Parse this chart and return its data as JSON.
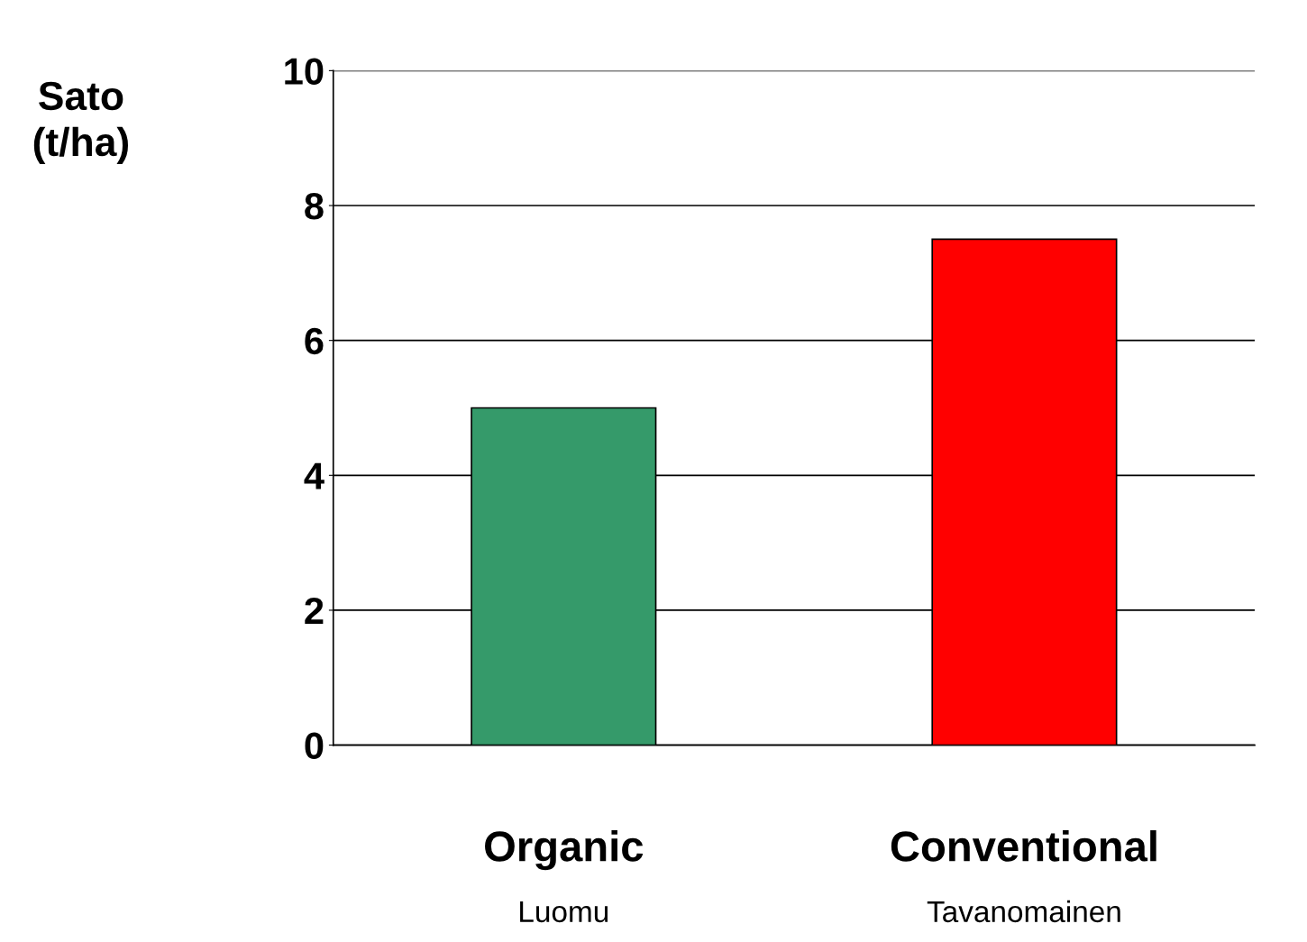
{
  "chart_data": {
    "type": "bar",
    "ylabel": "Sato\n(t/ha)",
    "categories": [
      "Organic",
      "Conventional"
    ],
    "values": [
      5.0,
      7.5
    ],
    "colors": [
      "#359a6a",
      "#ff0000"
    ],
    "annotations": [
      "Luomu",
      "Tavanomainen"
    ],
    "ylim": [
      0,
      10
    ],
    "yticks": [
      0,
      2,
      4,
      6,
      8,
      10
    ],
    "grid": "y",
    "legend": false
  }
}
